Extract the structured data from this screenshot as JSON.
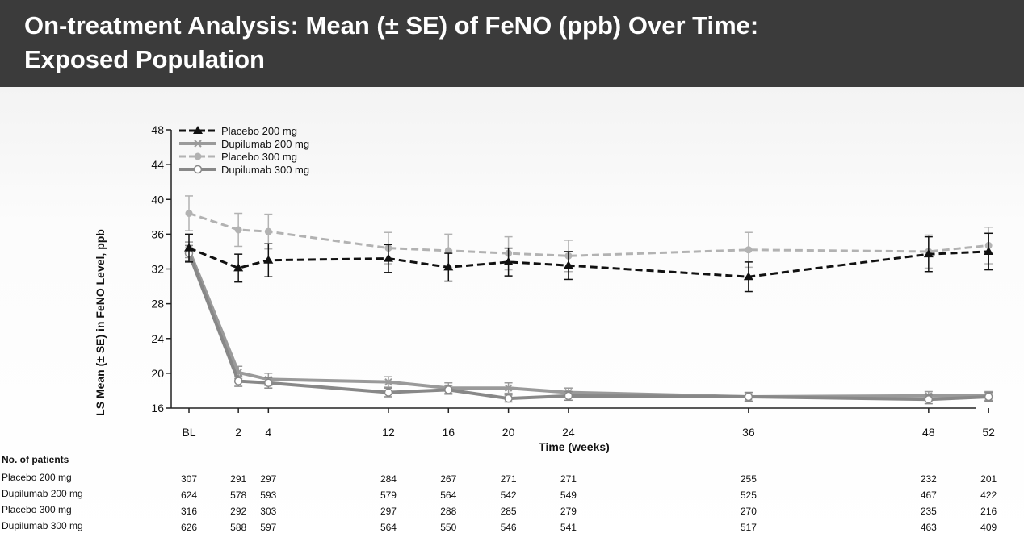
{
  "slide": {
    "title_line1": "On-treatment Analysis: Mean (± SE) of FeNO (ppb) Over Time:",
    "title_line2": "Exposed Population"
  },
  "chart_data": {
    "type": "line",
    "ylabel": "LS Mean (± SE) in FeNO Level, ppb",
    "xlabel": "Time (weeks)",
    "x_ticks": [
      "BL",
      "2",
      "4",
      "12",
      "16",
      "20",
      "24",
      "36",
      "48",
      "52"
    ],
    "x_values": [
      0,
      2,
      4,
      12,
      16,
      20,
      24,
      36,
      48,
      52
    ],
    "y_ticks": [
      16,
      20,
      24,
      28,
      32,
      36,
      40,
      44,
      48
    ],
    "ylim": [
      16,
      48
    ],
    "legend_position": "top-left",
    "series": [
      {
        "name": "Placebo 200 mg",
        "color": "#111111",
        "dashed": true,
        "marker": "triangle",
        "values": [
          34.4,
          32.1,
          33.0,
          33.2,
          32.2,
          32.8,
          32.4,
          31.1,
          33.7,
          34.0
        ],
        "se": [
          1.6,
          1.6,
          1.9,
          1.6,
          1.6,
          1.6,
          1.6,
          1.7,
          2.0,
          2.1
        ]
      },
      {
        "name": "Dupilumab 200 mg",
        "color": "#9a9a9a",
        "dashed": false,
        "marker": "x",
        "values": [
          34.2,
          20.1,
          19.3,
          19.0,
          18.3,
          18.3,
          17.8,
          17.3,
          17.4,
          17.4
        ],
        "se": [
          0.9,
          0.7,
          0.7,
          0.6,
          0.6,
          0.6,
          0.5,
          0.5,
          0.5,
          0.5
        ]
      },
      {
        "name": "Placebo 300 mg",
        "color": "#b2b2b2",
        "dashed": true,
        "marker": "circle",
        "values": [
          38.4,
          36.5,
          36.3,
          34.4,
          34.1,
          33.8,
          33.5,
          34.2,
          34.0,
          34.7
        ],
        "se": [
          2.0,
          1.9,
          2.0,
          1.8,
          1.9,
          1.9,
          1.8,
          2.0,
          1.9,
          2.1
        ]
      },
      {
        "name": "Dupilumab 300 mg",
        "color": "#888888",
        "dashed": false,
        "marker": "circle-open",
        "values": [
          33.8,
          19.1,
          18.9,
          17.8,
          18.1,
          17.1,
          17.4,
          17.3,
          17.0,
          17.3
        ],
        "se": [
          0.9,
          0.6,
          0.6,
          0.5,
          0.5,
          0.4,
          0.5,
          0.5,
          0.5,
          0.5
        ]
      }
    ]
  },
  "patients_table": {
    "header": "No. of patients",
    "rows": [
      {
        "label": "Placebo 200 mg",
        "counts": [
          "307",
          "291",
          "297",
          "284",
          "267",
          "271",
          "271",
          "255",
          "232",
          "201"
        ]
      },
      {
        "label": "Dupilumab 200 mg",
        "counts": [
          "624",
          "578",
          "593",
          "579",
          "564",
          "542",
          "549",
          "525",
          "467",
          "422"
        ]
      },
      {
        "label": "Placebo 300 mg",
        "counts": [
          "316",
          "292",
          "303",
          "297",
          "288",
          "285",
          "279",
          "270",
          "235",
          "216"
        ]
      },
      {
        "label": "Dupilumab 300 mg",
        "counts": [
          "626",
          "588",
          "597",
          "564",
          "550",
          "546",
          "541",
          "517",
          "463",
          "409"
        ]
      }
    ]
  }
}
